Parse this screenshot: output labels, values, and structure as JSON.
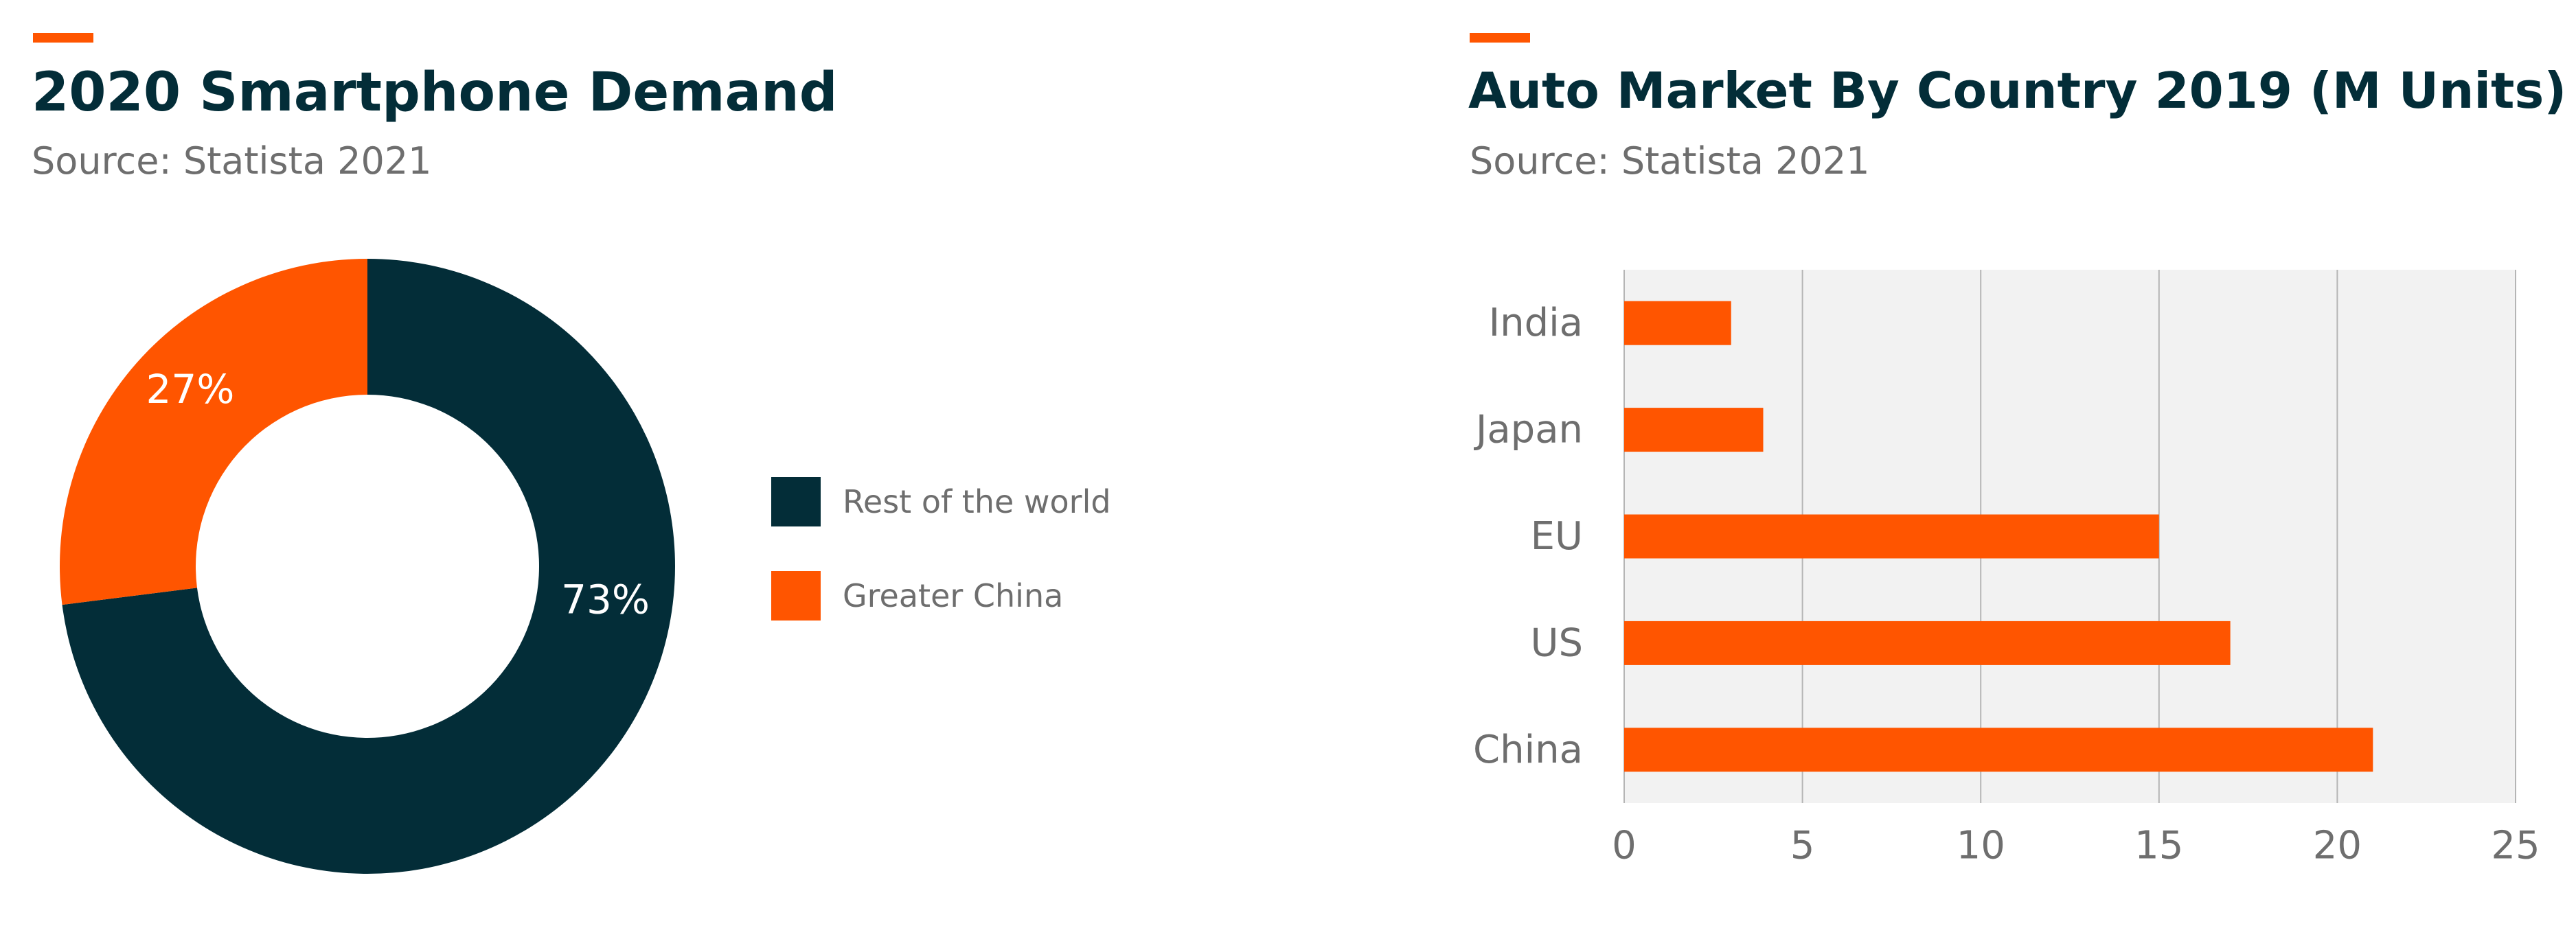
{
  "colors": {
    "accent": "#ff5500",
    "dark": "#032d38",
    "text_muted": "#6e6e6e",
    "grid": "#b5b5b5",
    "plot_bg": "#f2f2f2"
  },
  "chart_data": [
    {
      "type": "pie",
      "title": "2020 Smartphone Demand",
      "subtitle": "Source: Statista 2021",
      "labels": [
        "Rest of the world",
        "Greater China"
      ],
      "values": [
        73,
        27
      ],
      "value_labels": [
        "73%",
        "27%"
      ],
      "colors": [
        "#032d38",
        "#ff5500"
      ],
      "donut": true,
      "legend": "right"
    },
    {
      "type": "bar",
      "orientation": "horizontal",
      "title": "Auto Market By Country 2019 (M Units)",
      "subtitle": "Source: Statista 2021",
      "categories": [
        "India",
        "Japan",
        "EU",
        "US",
        "China"
      ],
      "values": [
        3,
        3.9,
        15,
        17,
        21
      ],
      "xlim": [
        0,
        25
      ],
      "xticks": [
        "0",
        "5",
        "10",
        "15",
        "20",
        "25"
      ],
      "bar_color": "#ff5500",
      "grid": true
    }
  ]
}
